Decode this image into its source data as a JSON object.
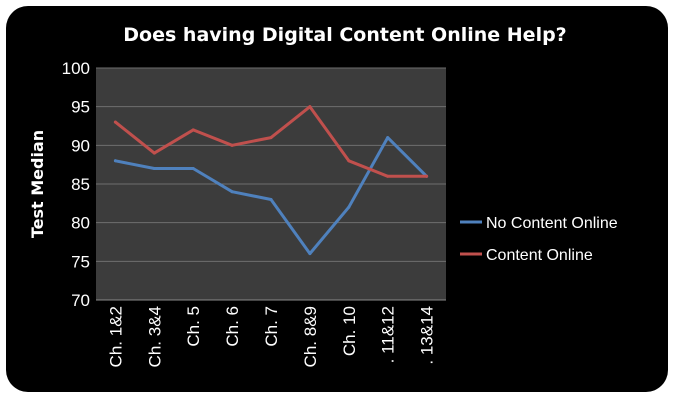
{
  "chart_data": {
    "type": "line",
    "title": "Does having Digital Content Online Help?",
    "ylabel": "Test Median",
    "xlabel": "",
    "ylim": [
      70,
      100
    ],
    "yticks": [
      70,
      75,
      80,
      85,
      90,
      95,
      100
    ],
    "categories": [
      "Ch. 1&2",
      "Ch. 3&4",
      "Ch. 5",
      "Ch. 6",
      "Ch. 7",
      "Ch. 8&9",
      "Ch. 10",
      ". 11&12",
      ". 13&14"
    ],
    "series": [
      {
        "name": "No Content Online",
        "color": "#4f81bd",
        "values": [
          88,
          87,
          87,
          84,
          83,
          76,
          82,
          91,
          86
        ]
      },
      {
        "name": "Content Online",
        "color": "#c0504d",
        "values": [
          93,
          89,
          92,
          90,
          91,
          95,
          88,
          86,
          86
        ]
      }
    ],
    "grid": true,
    "plot_background": "#3c3c3c",
    "legend_position": "right"
  }
}
